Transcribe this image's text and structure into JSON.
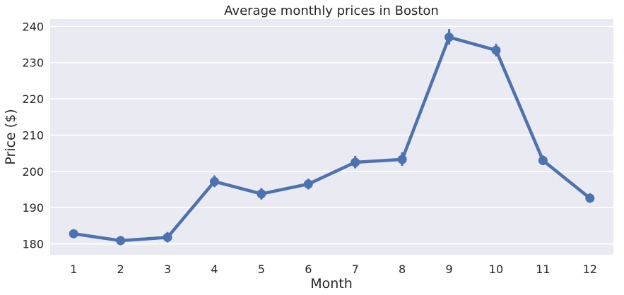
{
  "chart_data": {
    "type": "line",
    "title": "Average monthly prices in Boston",
    "xlabel": "Month",
    "ylabel": "Price ($)",
    "categories": [
      "1",
      "2",
      "3",
      "4",
      "5",
      "6",
      "7",
      "8",
      "9",
      "10",
      "11",
      "12"
    ],
    "series": [
      {
        "values": [
          182.8,
          180.9,
          181.8,
          197.2,
          193.8,
          196.5,
          202.5,
          203.3,
          237.0,
          233.4,
          203.0,
          192.6
        ],
        "ci_low": [
          181.9,
          180.0,
          180.7,
          195.9,
          192.5,
          195.3,
          201.1,
          201.8,
          235.2,
          232.0,
          202.0,
          191.6
        ],
        "ci_high": [
          183.8,
          181.9,
          183.0,
          198.6,
          195.1,
          197.7,
          204.0,
          205.0,
          239.0,
          234.9,
          204.1,
          193.7
        ],
        "color": "#4c72b0"
      }
    ],
    "ylim": [
      177,
      242
    ],
    "yticks": [
      180,
      190,
      200,
      210,
      220,
      230,
      240
    ],
    "grid": true,
    "background": "#eaeaf2"
  }
}
